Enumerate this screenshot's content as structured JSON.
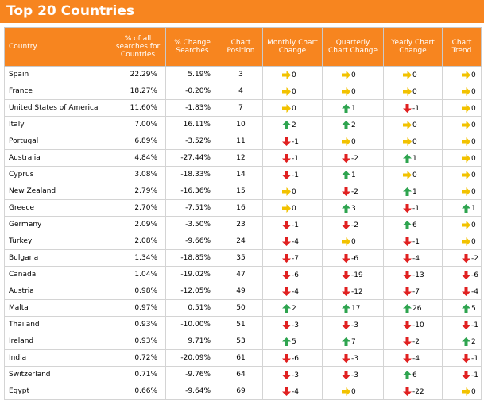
{
  "header": {
    "title": "Top 20 Countries"
  },
  "table": {
    "columns": [
      "Country",
      "% of all searches for Countries",
      "% Change Searches",
      "Chart Position",
      "Monthly Chart Change",
      "Quarterly Chart Change",
      "Yearly Chart Change",
      "Chart Trend"
    ],
    "rows": [
      [
        "Spain",
        "22.29%",
        "5.19%",
        3,
        0,
        0,
        0,
        0
      ],
      [
        "France",
        "18.27%",
        "-0.20%",
        4,
        0,
        0,
        0,
        0
      ],
      [
        "United States of America",
        "11.60%",
        "-1.83%",
        7,
        0,
        1,
        -1,
        0
      ],
      [
        "Italy",
        "7.00%",
        "16.11%",
        10,
        2,
        2,
        0,
        0
      ],
      [
        "Portugal",
        "6.89%",
        "-3.52%",
        11,
        -1,
        0,
        0,
        0
      ],
      [
        "Australia",
        "4.84%",
        "-27.44%",
        12,
        -1,
        -2,
        1,
        0
      ],
      [
        "Cyprus",
        "3.08%",
        "-18.33%",
        14,
        -1,
        1,
        0,
        0
      ],
      [
        "New Zealand",
        "2.79%",
        "-16.36%",
        15,
        0,
        -2,
        1,
        0
      ],
      [
        "Greece",
        "2.70%",
        "-7.51%",
        16,
        0,
        3,
        -1,
        1
      ],
      [
        "Germany",
        "2.09%",
        "-3.50%",
        23,
        -1,
        -2,
        6,
        0
      ],
      [
        "Turkey",
        "2.08%",
        "-9.66%",
        24,
        -4,
        0,
        -1,
        0
      ],
      [
        "Bulgaria",
        "1.34%",
        "-18.85%",
        35,
        -7,
        -6,
        -4,
        -2
      ],
      [
        "Canada",
        "1.04%",
        "-19.02%",
        47,
        -6,
        -19,
        -13,
        -6
      ],
      [
        "Austria",
        "0.98%",
        "-12.05%",
        49,
        -4,
        -12,
        -7,
        -4
      ],
      [
        "Malta",
        "0.97%",
        "0.51%",
        50,
        2,
        17,
        26,
        5
      ],
      [
        "Thailand",
        "0.93%",
        "-10.00%",
        51,
        -3,
        -3,
        -10,
        -1
      ],
      [
        "Ireland",
        "0.93%",
        "9.71%",
        53,
        5,
        7,
        -2,
        2
      ],
      [
        "India",
        "0.72%",
        "-20.09%",
        61,
        -6,
        -3,
        -4,
        -1
      ],
      [
        "Switzerland",
        "0.71%",
        "-9.76%",
        64,
        -3,
        -3,
        6,
        -1
      ],
      [
        "Egypt",
        "0.66%",
        "-9.64%",
        69,
        -4,
        0,
        -22,
        0
      ]
    ]
  }
}
